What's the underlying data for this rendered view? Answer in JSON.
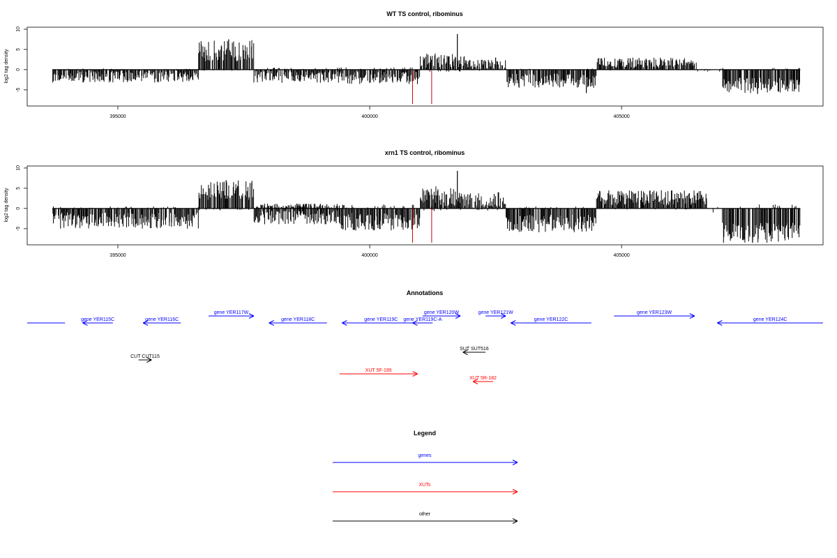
{
  "chart_data": [
    {
      "type": "bar",
      "title": "WT TS control, ribominus",
      "ylabel": "log2 tag density",
      "xlim": [
        393200,
        409000
      ],
      "ylim": [
        -9,
        10.5
      ],
      "yticks": [
        10,
        5,
        0,
        -5
      ],
      "ytick_labels": [
        "10",
        "5",
        "0",
        "-5"
      ],
      "xticks": [
        395000,
        400000,
        405000
      ],
      "xtick_labels": [
        "395000",
        "400000",
        "405000"
      ],
      "baseline": [
        393700,
        408550
      ],
      "red_markers": [
        400850,
        401230
      ],
      "red_marker_value": -8.5,
      "segments": [
        {
          "from": 393700,
          "to": 396600,
          "min": 0,
          "max": 0.3,
          "neg_min": 0.2,
          "neg_max": 3.2
        },
        {
          "from": 396600,
          "to": 397700,
          "min": 2.0,
          "max": 7.5,
          "neg_min": 0,
          "neg_max": 0.3
        },
        {
          "from": 397700,
          "to": 399400,
          "min": 0,
          "max": 0.5,
          "neg_min": 0.3,
          "neg_max": 3.3
        },
        {
          "from": 399400,
          "to": 401000,
          "min": 0,
          "max": 0.6,
          "neg_min": 0.3,
          "neg_max": 3.6
        },
        {
          "from": 401000,
          "to": 401900,
          "min": 0.5,
          "max": 4.0,
          "neg_min": 0,
          "neg_max": 0.5
        },
        {
          "from": 401900,
          "to": 402700,
          "min": 0,
          "max": 2.5,
          "neg_min": 0,
          "neg_max": 0.3
        },
        {
          "from": 402700,
          "to": 404500,
          "min": 0,
          "max": 0.3,
          "neg_min": 1.0,
          "neg_max": 4.5
        },
        {
          "from": 404500,
          "to": 406500,
          "min": 0.5,
          "max": 3.0,
          "neg_min": 0,
          "neg_max": 0.2
        },
        {
          "from": 406500,
          "to": 407000,
          "min": 0,
          "max": 0.3,
          "neg_min": 0,
          "neg_max": 0.5
        },
        {
          "from": 407000,
          "to": 408550,
          "min": 0,
          "max": 0.5,
          "neg_min": 2.0,
          "neg_max": 5.8
        }
      ],
      "peaks": [
        {
          "x": 401740,
          "y": 8.8
        },
        {
          "x": 397200,
          "y": 7.5
        },
        {
          "x": 402500,
          "y": 3.0
        },
        {
          "x": 404300,
          "y": -5.8
        },
        {
          "x": 407700,
          "y": -6.0
        }
      ]
    },
    {
      "type": "bar",
      "title": "xrn1 TS control, ribominus",
      "ylabel": "log2 tag density",
      "xlim": [
        393200,
        409000
      ],
      "ylim": [
        -9,
        10.5
      ],
      "yticks": [
        10,
        5,
        0,
        -5
      ],
      "ytick_labels": [
        "10",
        "5",
        "0",
        "-5"
      ],
      "xticks": [
        395000,
        400000,
        405000
      ],
      "xtick_labels": [
        "395000",
        "400000",
        "405000"
      ],
      "baseline": [
        393700,
        408550
      ],
      "red_markers": [
        400850,
        401230
      ],
      "red_marker_value": -8.5,
      "segments": [
        {
          "from": 393700,
          "to": 396600,
          "min": 0,
          "max": 0.5,
          "neg_min": 1.0,
          "neg_max": 5.0
        },
        {
          "from": 396600,
          "to": 397700,
          "min": 2.0,
          "max": 7.0,
          "neg_min": 0,
          "neg_max": 0.5
        },
        {
          "from": 397700,
          "to": 399400,
          "min": 0,
          "max": 1.2,
          "neg_min": 0.5,
          "neg_max": 4.0
        },
        {
          "from": 399400,
          "to": 401000,
          "min": 0,
          "max": 1.0,
          "neg_min": 1.0,
          "neg_max": 5.5
        },
        {
          "from": 401000,
          "to": 401900,
          "min": 0.5,
          "max": 5.5,
          "neg_min": 0,
          "neg_max": 0.8
        },
        {
          "from": 401900,
          "to": 402700,
          "min": 0,
          "max": 4.0,
          "neg_min": 0,
          "neg_max": 0.5
        },
        {
          "from": 402700,
          "to": 404500,
          "min": 0,
          "max": 0.5,
          "neg_min": 1.5,
          "neg_max": 6.0
        },
        {
          "from": 404500,
          "to": 406700,
          "min": 0.8,
          "max": 4.5,
          "neg_min": 0,
          "neg_max": 0.3
        },
        {
          "from": 406700,
          "to": 407000,
          "min": 0,
          "max": 0.5,
          "neg_min": 0,
          "neg_max": 1.0
        },
        {
          "from": 407000,
          "to": 408550,
          "min": 0,
          "max": 1.0,
          "neg_min": 3.5,
          "neg_max": 8.5
        }
      ],
      "peaks": [
        {
          "x": 401740,
          "y": 9.3
        },
        {
          "x": 397150,
          "y": 7.0
        },
        {
          "x": 402550,
          "y": 4.0
        },
        {
          "x": 407600,
          "y": -8.5
        }
      ]
    }
  ],
  "annotations": {
    "title": "Annotations",
    "items": [
      {
        "label": "",
        "start": 393200,
        "end": 393950,
        "strand": "none",
        "row": "gene_low",
        "kind": "gene"
      },
      {
        "label": "gene YER115C",
        "start": 394900,
        "end": 394300,
        "strand": "-",
        "row": "gene_low",
        "kind": "gene"
      },
      {
        "label": "gene YER116C",
        "start": 396250,
        "end": 395500,
        "strand": "-",
        "row": "gene_low",
        "kind": "gene"
      },
      {
        "label": "gene YER117W",
        "start": 396800,
        "end": 397700,
        "strand": "+",
        "row": "gene_high",
        "kind": "gene"
      },
      {
        "label": "gene YER118C",
        "start": 399150,
        "end": 398000,
        "strand": "-",
        "row": "gene_low",
        "kind": "gene"
      },
      {
        "label": "gene YER119C",
        "start": 401000,
        "end": 399450,
        "strand": "-",
        "row": "gene_low",
        "kind": "gene"
      },
      {
        "label": "gene YER119C-A",
        "start": 401250,
        "end": 400850,
        "strand": "-",
        "row": "gene_low",
        "kind": "gene"
      },
      {
        "label": "gene YER120W",
        "start": 401050,
        "end": 401800,
        "strand": "+",
        "row": "gene_high",
        "kind": "gene"
      },
      {
        "label": "gene YER121W",
        "start": 402300,
        "end": 402700,
        "strand": "+",
        "row": "gene_high",
        "kind": "gene"
      },
      {
        "label": "gene YER122C",
        "start": 404400,
        "end": 402800,
        "strand": "-",
        "row": "gene_low",
        "kind": "gene"
      },
      {
        "label": "gene YER123W",
        "start": 404850,
        "end": 406450,
        "strand": "+",
        "row": "gene_high",
        "kind": "gene"
      },
      {
        "label": "gene YER124C",
        "start": 409000,
        "end": 406900,
        "strand": "-",
        "row": "gene_low",
        "kind": "gene"
      },
      {
        "label": "SUT SUT516",
        "start": 402300,
        "end": 401850,
        "strand": "-",
        "row": "sut",
        "kind": "other"
      },
      {
        "label": "CUT CUT115",
        "start": 395410,
        "end": 395670,
        "strand": "+",
        "row": "cut",
        "kind": "other"
      },
      {
        "label": "XUT 5F-195",
        "start": 399400,
        "end": 400950,
        "strand": "+",
        "row": "xut_high",
        "kind": "xut"
      },
      {
        "label": "XUT 5R-182",
        "start": 402450,
        "end": 402050,
        "strand": "-",
        "row": "xut_low",
        "kind": "xut"
      }
    ]
  },
  "legend": {
    "title": "Legend",
    "items": [
      {
        "label": "genes",
        "kind": "gene"
      },
      {
        "label": "XUTs",
        "kind": "xut"
      },
      {
        "label": "other",
        "kind": "other"
      }
    ]
  },
  "colors": {
    "gene": "#0000ff",
    "xut": "#ff0000",
    "other": "#000000",
    "bars": "#000000",
    "marker": "#cc0000"
  }
}
